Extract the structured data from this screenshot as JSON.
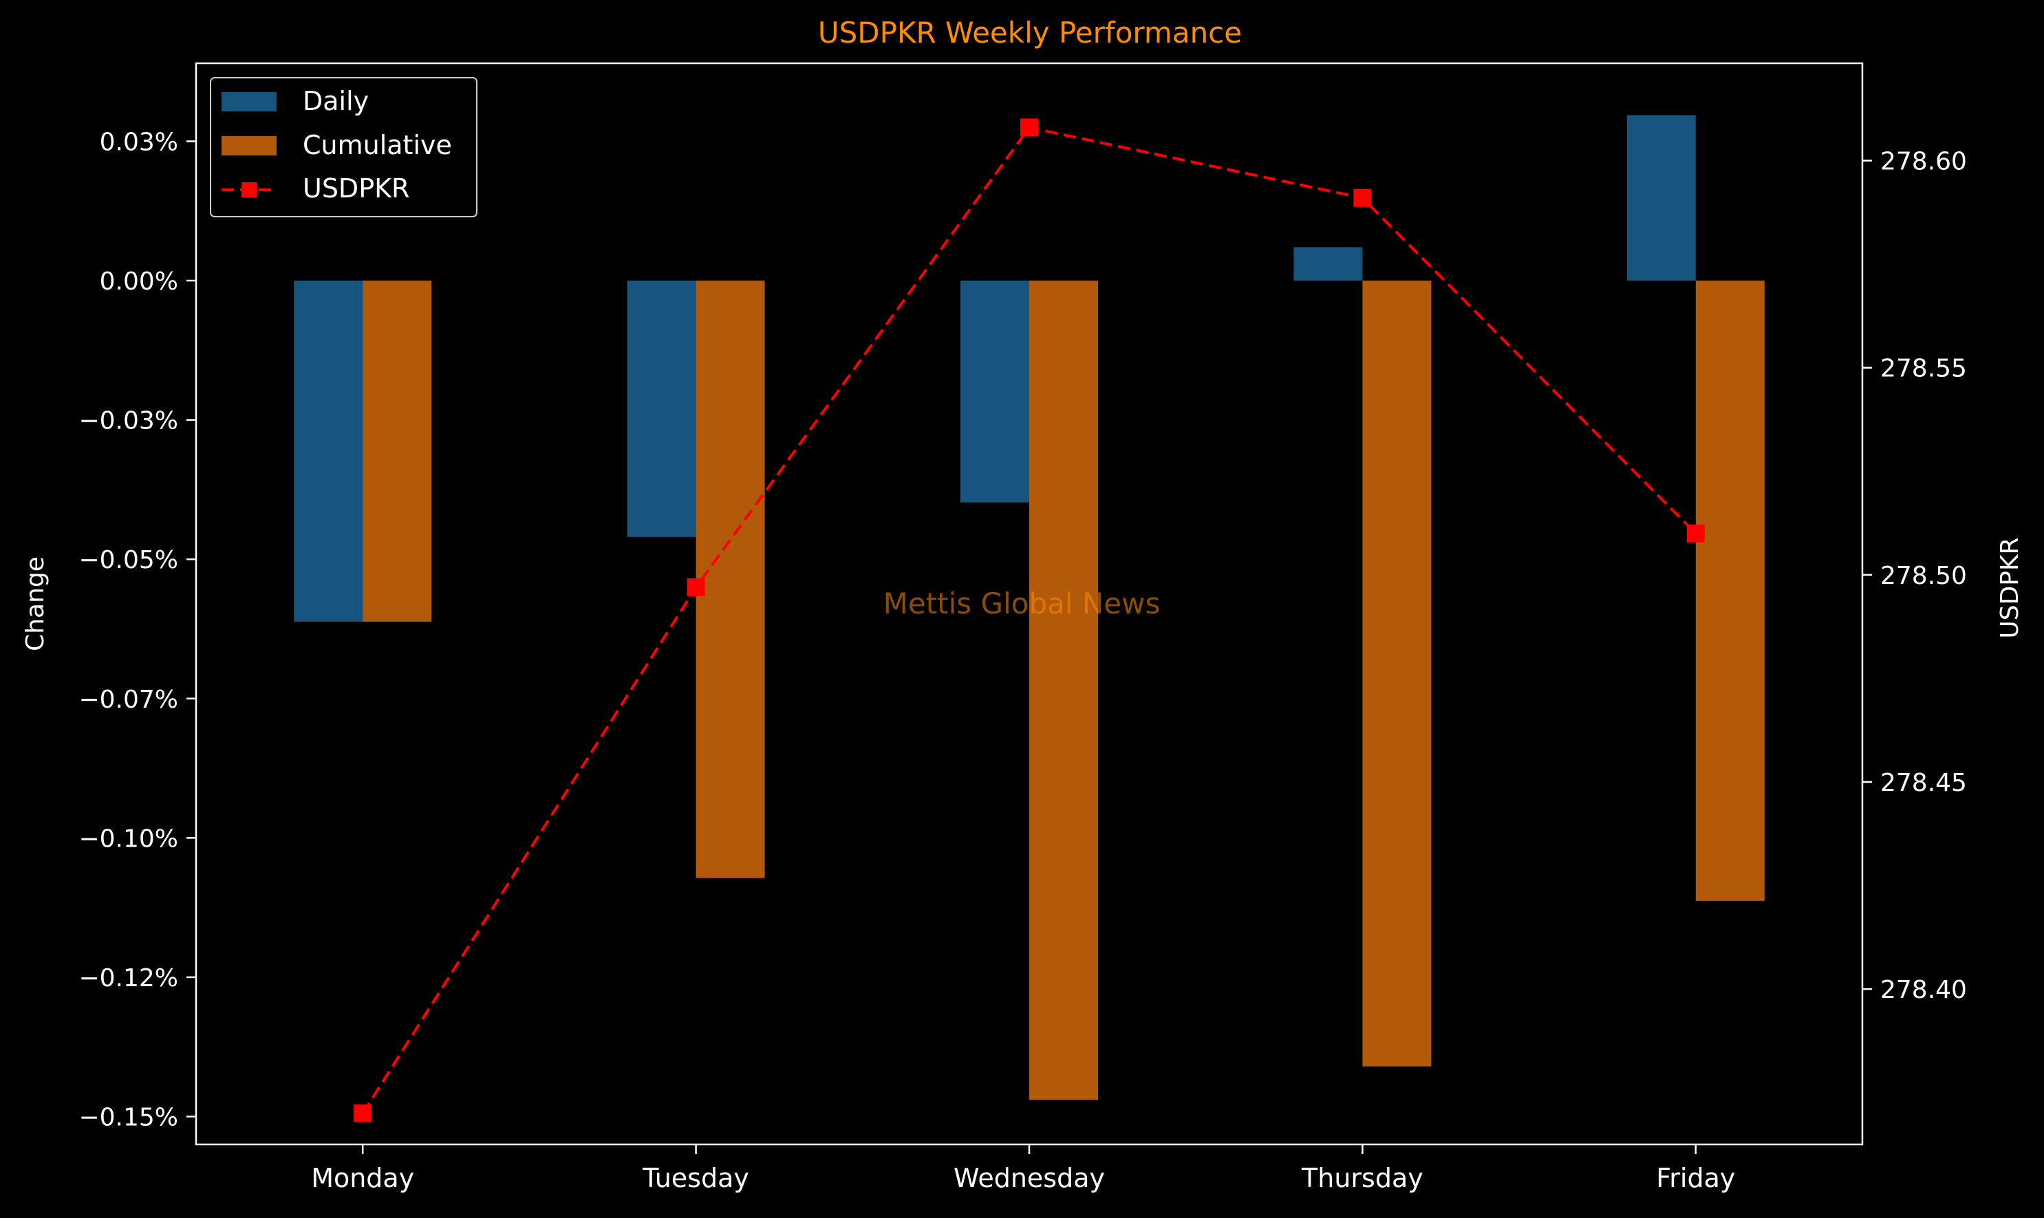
{
  "chart_data": {
    "type": "bar",
    "title": "USDPKR Weekly Performance",
    "watermark": "Mettis Global News",
    "categories": [
      "Monday",
      "Tuesday",
      "Wednesday",
      "Thursday",
      "Friday"
    ],
    "left_axis": {
      "label": "Change",
      "unit": "%",
      "ylim": [
        -0.155,
        0.039
      ],
      "ticks": [
        0.025,
        0.0,
        -0.025,
        -0.05,
        -0.075,
        -0.1,
        -0.125,
        -0.15
      ],
      "tick_labels": [
        "0.03%",
        "0.00%",
        "−0.03%",
        "−0.05%",
        "−0.07%",
        "−0.10%",
        "−0.12%",
        "−0.15%"
      ]
    },
    "right_axis": {
      "label": "USDPKR",
      "ylim": [
        278.3625,
        278.6235
      ],
      "ticks": [
        278.4,
        278.45,
        278.5,
        278.55,
        278.6
      ],
      "tick_labels": [
        "278.40",
        "278.45",
        "278.50",
        "278.55",
        "278.60"
      ]
    },
    "series": [
      {
        "name": "Daily",
        "kind": "bar",
        "axis": "left",
        "color": "#1f77b4",
        "values": [
          -0.0612,
          -0.046,
          -0.0398,
          0.006,
          0.0297
        ]
      },
      {
        "name": "Cumulative",
        "kind": "bar",
        "axis": "left",
        "color": "#ff7f0e",
        "values": [
          -0.0612,
          -0.1072,
          -0.147,
          -0.141,
          -0.1113
        ]
      },
      {
        "name": "USDPKR",
        "kind": "line",
        "axis": "right",
        "color": "#ff0000",
        "line_style": "dashed",
        "marker": "square",
        "values": [
          278.37,
          278.497,
          278.608,
          278.591,
          278.51
        ]
      }
    ],
    "legend": {
      "position": "top-left",
      "entries": [
        "Daily",
        "Cumulative",
        "USDPKR"
      ]
    },
    "colors": {
      "background": "#000000",
      "foreground": "#ffffff",
      "title": "#ff8c00",
      "watermark": "#ff8c00"
    }
  }
}
